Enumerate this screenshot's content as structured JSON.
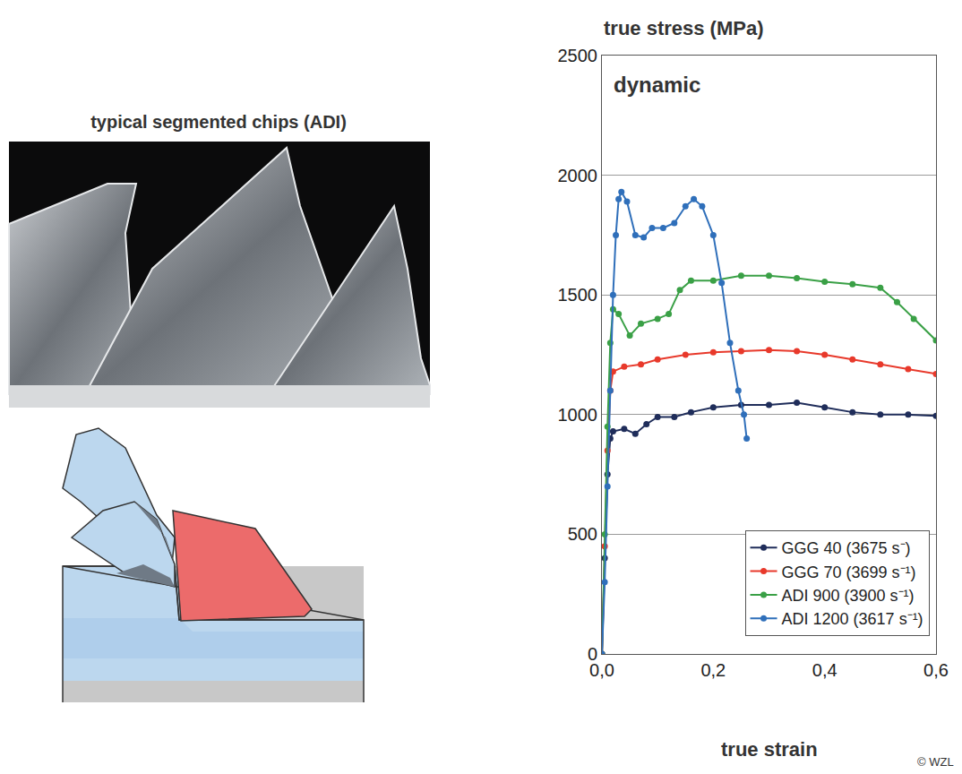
{
  "chart_data": {
    "type": "line",
    "y_label": "true stress (MPa)",
    "x_label": "true strain",
    "annotations": [
      "dynamic"
    ],
    "series": [
      {
        "name": "GGG 40 (3675 s⁻)",
        "color": "#1f2d5a",
        "x": [
          0,
          0.005,
          0.01,
          0.015,
          0.02,
          0.04,
          0.06,
          0.08,
          0.1,
          0.13,
          0.16,
          0.2,
          0.25,
          0.3,
          0.35,
          0.4,
          0.45,
          0.5,
          0.55,
          0.6
        ],
        "values": [
          0,
          400,
          750,
          900,
          930,
          940,
          920,
          960,
          990,
          990,
          1010,
          1030,
          1040,
          1040,
          1050,
          1030,
          1010,
          1000,
          1000,
          995
        ]
      },
      {
        "name": "GGG 70 (3699 s⁻¹)",
        "color": "#e8392b",
        "x": [
          0,
          0.005,
          0.01,
          0.015,
          0.02,
          0.04,
          0.07,
          0.1,
          0.15,
          0.2,
          0.25,
          0.3,
          0.35,
          0.4,
          0.45,
          0.5,
          0.55,
          0.6
        ],
        "values": [
          0,
          450,
          850,
          1100,
          1180,
          1200,
          1210,
          1230,
          1250,
          1260,
          1265,
          1270,
          1265,
          1250,
          1230,
          1210,
          1190,
          1170
        ]
      },
      {
        "name": "ADI 900 (3900 s⁻¹)",
        "color": "#3aa046",
        "x": [
          0,
          0.005,
          0.01,
          0.015,
          0.02,
          0.03,
          0.05,
          0.07,
          0.1,
          0.12,
          0.14,
          0.16,
          0.2,
          0.25,
          0.3,
          0.35,
          0.4,
          0.45,
          0.5,
          0.53,
          0.56,
          0.6
        ],
        "values": [
          0,
          500,
          950,
          1300,
          1440,
          1420,
          1330,
          1380,
          1400,
          1420,
          1520,
          1560,
          1560,
          1580,
          1580,
          1570,
          1555,
          1545,
          1530,
          1470,
          1400,
          1310
        ]
      },
      {
        "name": "ADI 1200 (3617 s⁻¹)",
        "color": "#2f6fba",
        "x": [
          0,
          0.005,
          0.01,
          0.015,
          0.02,
          0.025,
          0.03,
          0.035,
          0.045,
          0.06,
          0.075,
          0.09,
          0.11,
          0.13,
          0.15,
          0.165,
          0.18,
          0.2,
          0.215,
          0.23,
          0.245,
          0.255,
          0.26
        ],
        "values": [
          0,
          300,
          700,
          1100,
          1500,
          1750,
          1900,
          1930,
          1890,
          1750,
          1740,
          1780,
          1780,
          1800,
          1870,
          1900,
          1870,
          1750,
          1550,
          1300,
          1100,
          1000,
          900
        ]
      }
    ],
    "xlim": [
      0,
      0.6
    ],
    "xticks": [
      {
        "value": 0,
        "label": "0,0"
      },
      {
        "value": 0.2,
        "label": "0,2"
      },
      {
        "value": 0.4,
        "label": "0,4"
      },
      {
        "value": 0.6,
        "label": "0,6"
      }
    ],
    "ylim": [
      0,
      2500
    ],
    "yticks": [
      0,
      500,
      1000,
      1500,
      2000,
      2500
    ],
    "grid": true,
    "legend": "bottom right",
    "marker": "circle",
    "line_style": "solid"
  },
  "left_panel": {
    "title": "typical segmented chips (ADI)"
  },
  "credit": "© WZL"
}
